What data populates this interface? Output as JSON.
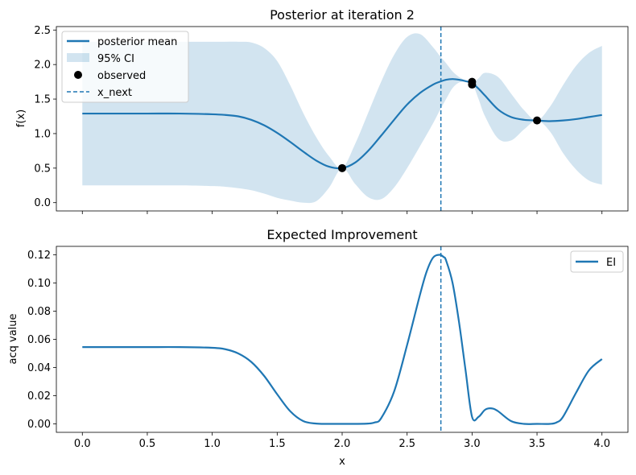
{
  "colors": {
    "series": "#1f77b4",
    "ci_fill": "#1f77b4",
    "observed": "#000000"
  },
  "chart_data": [
    {
      "type": "line",
      "title": "Posterior at iteration 2",
      "xlabel": "",
      "ylabel": "f(x)",
      "xlim": [
        -0.2,
        4.2
      ],
      "ylim": [
        -0.12,
        2.55
      ],
      "xticks": [
        0,
        0.5,
        1,
        1.5,
        2,
        2.5,
        3,
        3.5,
        4
      ],
      "xtick_labels_visible": false,
      "yticks": [
        0.0,
        0.5,
        1.0,
        1.5,
        2.0,
        2.5
      ],
      "ytick_labels": [
        "0.0",
        "0.5",
        "1.0",
        "1.5",
        "2.0",
        "2.5"
      ],
      "legend": {
        "position": "upper-left",
        "entries": [
          {
            "label": "posterior mean",
            "kind": "line"
          },
          {
            "label": "95% CI",
            "kind": "patch"
          },
          {
            "label": "observed",
            "kind": "marker"
          },
          {
            "label": "x_next",
            "kind": "dashed-line"
          }
        ]
      },
      "series": [
        {
          "name": "posterior mean",
          "x": [
            0,
            0.25,
            0.5,
            0.75,
            1.0,
            1.1,
            1.2,
            1.3,
            1.4,
            1.5,
            1.6,
            1.7,
            1.8,
            1.9,
            2.0,
            2.1,
            2.2,
            2.3,
            2.4,
            2.5,
            2.6,
            2.7,
            2.75,
            2.8,
            2.85,
            2.9,
            2.95,
            3.0,
            3.05,
            3.1,
            3.2,
            3.3,
            3.4,
            3.5,
            3.6,
            3.7,
            3.8,
            3.9,
            4.0
          ],
          "y": [
            1.29,
            1.29,
            1.29,
            1.29,
            1.28,
            1.27,
            1.25,
            1.2,
            1.12,
            1.01,
            0.88,
            0.74,
            0.61,
            0.52,
            0.5,
            0.58,
            0.75,
            0.97,
            1.2,
            1.42,
            1.59,
            1.71,
            1.75,
            1.78,
            1.79,
            1.78,
            1.76,
            1.73,
            1.65,
            1.55,
            1.35,
            1.24,
            1.2,
            1.19,
            1.18,
            1.19,
            1.21,
            1.24,
            1.27
          ]
        },
        {
          "name": "95% CI",
          "x": [
            0,
            0.25,
            0.5,
            0.75,
            1.0,
            1.1,
            1.2,
            1.3,
            1.4,
            1.5,
            1.6,
            1.7,
            1.8,
            1.9,
            2.0,
            2.1,
            2.2,
            2.3,
            2.4,
            2.5,
            2.6,
            2.7,
            2.75,
            2.8,
            2.85,
            2.9,
            2.95,
            3.0,
            3.05,
            3.1,
            3.2,
            3.3,
            3.4,
            3.5,
            3.6,
            3.7,
            3.8,
            3.9,
            4.0
          ],
          "upper": [
            2.33,
            2.33,
            2.33,
            2.33,
            2.33,
            2.33,
            2.33,
            2.32,
            2.24,
            2.05,
            1.7,
            1.3,
            0.95,
            0.67,
            0.5,
            0.85,
            1.3,
            1.75,
            2.14,
            2.4,
            2.44,
            2.25,
            2.13,
            2.02,
            1.9,
            1.82,
            1.77,
            1.73,
            1.8,
            1.88,
            1.82,
            1.58,
            1.34,
            1.19,
            1.39,
            1.7,
            1.98,
            2.17,
            2.27
          ],
          "lower": [
            0.25,
            0.25,
            0.25,
            0.25,
            0.24,
            0.23,
            0.21,
            0.18,
            0.13,
            0.07,
            0.03,
            0.0,
            0.02,
            0.22,
            0.5,
            0.27,
            0.08,
            0.05,
            0.22,
            0.5,
            0.82,
            1.15,
            1.33,
            1.5,
            1.66,
            1.74,
            1.75,
            1.73,
            1.5,
            1.25,
            0.93,
            0.9,
            1.06,
            1.19,
            1.03,
            0.72,
            0.48,
            0.32,
            0.26
          ]
        },
        {
          "name": "observed",
          "x": [
            2.0,
            3.0,
            3.0,
            3.5
          ],
          "y": [
            0.5,
            1.71,
            1.75,
            1.19
          ]
        },
        {
          "name": "x_next",
          "x": [
            2.76
          ]
        }
      ]
    },
    {
      "type": "line",
      "title": "Expected Improvement",
      "xlabel": "x",
      "ylabel": "acq value",
      "xlim": [
        -0.2,
        4.2
      ],
      "ylim": [
        -0.006,
        0.126
      ],
      "xticks": [
        0,
        0.5,
        1,
        1.5,
        2,
        2.5,
        3,
        3.5,
        4
      ],
      "xtick_labels": [
        "0.0",
        "0.5",
        "1.0",
        "1.5",
        "2.0",
        "2.5",
        "3.0",
        "3.5",
        "4.0"
      ],
      "yticks": [
        0.0,
        0.02,
        0.04,
        0.06,
        0.08,
        0.1,
        0.12
      ],
      "ytick_labels": [
        "0.00",
        "0.02",
        "0.04",
        "0.06",
        "0.08",
        "0.10",
        "0.12"
      ],
      "legend": {
        "position": "upper-right",
        "entries": [
          {
            "label": "EI",
            "kind": "line"
          }
        ]
      },
      "series": [
        {
          "name": "EI",
          "x": [
            0,
            0.25,
            0.5,
            0.75,
            1.0,
            1.1,
            1.2,
            1.3,
            1.4,
            1.5,
            1.6,
            1.7,
            1.8,
            1.9,
            2.0,
            2.1,
            2.2,
            2.25,
            2.3,
            2.4,
            2.5,
            2.6,
            2.65,
            2.7,
            2.75,
            2.78,
            2.8,
            2.85,
            2.9,
            2.95,
            3.0,
            3.05,
            3.1,
            3.15,
            3.2,
            3.3,
            3.4,
            3.5,
            3.6,
            3.65,
            3.7,
            3.8,
            3.9,
            4.0
          ],
          "y": [
            0.0545,
            0.0545,
            0.0545,
            0.0545,
            0.054,
            0.053,
            0.05,
            0.044,
            0.034,
            0.021,
            0.009,
            0.002,
            0.0002,
            0.0,
            0.0,
            0.0,
            0.0002,
            0.001,
            0.004,
            0.023,
            0.056,
            0.092,
            0.108,
            0.118,
            0.12,
            0.1185,
            0.116,
            0.1,
            0.072,
            0.038,
            0.005,
            0.005,
            0.01,
            0.011,
            0.009,
            0.002,
            0.0,
            0.0,
            0.0,
            0.001,
            0.005,
            0.022,
            0.038,
            0.046
          ]
        },
        {
          "name": "x_next",
          "x": [
            2.76
          ]
        }
      ]
    }
  ]
}
